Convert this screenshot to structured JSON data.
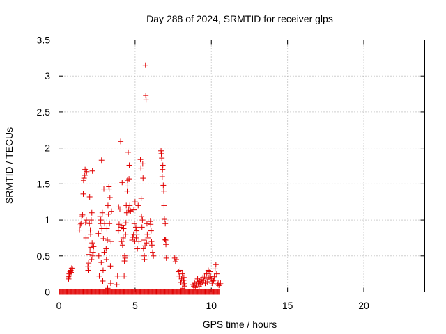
{
  "chart_data": {
    "type": "scatter",
    "title": "Day 288 of 2024, SRMTID for receiver glps",
    "xlabel": "GPS time / hours",
    "ylabel": "SRMTID / TECUs",
    "xlim": [
      0,
      24
    ],
    "ylim": [
      0,
      3.5
    ],
    "xticks": [
      0,
      5,
      10,
      15,
      20
    ],
    "yticks": [
      0,
      0.5,
      1,
      1.5,
      2,
      2.5,
      3,
      3.5
    ],
    "xtick_labels": [
      "0",
      "5",
      "10",
      "15",
      "20"
    ],
    "ytick_labels": [
      "0",
      "0.5",
      "1",
      "1.5",
      "2",
      "2.5",
      "3",
      "3.5"
    ],
    "grid": true,
    "marker": "+",
    "color": "#e00000",
    "series": [
      {
        "name": "glps",
        "points": [
          [
            0.0,
            0.29
          ],
          [
            0.62,
            0.21
          ],
          [
            0.64,
            0.18
          ],
          [
            0.68,
            0.25
          ],
          [
            0.7,
            0.22
          ],
          [
            0.74,
            0.28
          ],
          [
            0.78,
            0.3
          ],
          [
            0.8,
            0.27
          ],
          [
            0.84,
            0.33
          ],
          [
            0.9,
            0.32
          ],
          [
            1.35,
            0.86
          ],
          [
            1.4,
            0.93
          ],
          [
            1.45,
            0.95
          ],
          [
            1.5,
            1.05
          ],
          [
            1.55,
            1.07
          ],
          [
            1.6,
            1.36
          ],
          [
            1.62,
            1.55
          ],
          [
            1.65,
            1.58
          ],
          [
            1.7,
            1.62
          ],
          [
            1.72,
            1.7
          ],
          [
            1.75,
            0.96
          ],
          [
            1.78,
            0.75
          ],
          [
            1.8,
            1.0
          ],
          [
            1.82,
            1.67
          ],
          [
            1.9,
            0.35
          ],
          [
            1.92,
            0.3
          ],
          [
            1.95,
            0.4
          ],
          [
            1.97,
            0.52
          ],
          [
            2.0,
            0.95
          ],
          [
            2.02,
            1.32
          ],
          [
            2.04,
            0.58
          ],
          [
            2.06,
            0.86
          ],
          [
            2.08,
            0.8
          ],
          [
            2.1,
            0.62
          ],
          [
            2.12,
            1.0
          ],
          [
            2.14,
            0.45
          ],
          [
            2.16,
            1.1
          ],
          [
            2.18,
            0.68
          ],
          [
            2.2,
            1.68
          ],
          [
            2.22,
            0.5
          ],
          [
            2.25,
            0.55
          ],
          [
            2.28,
            0.63
          ],
          [
            2.6,
            0.81
          ],
          [
            2.62,
            0.5
          ],
          [
            2.65,
            0.22
          ],
          [
            2.7,
            1.05
          ],
          [
            2.72,
            0.95
          ],
          [
            2.75,
            1.0
          ],
          [
            2.78,
            0.41
          ],
          [
            2.8,
            1.83
          ],
          [
            2.82,
            0.88
          ],
          [
            2.85,
            1.1
          ],
          [
            2.88,
            0.15
          ],
          [
            2.9,
            0.3
          ],
          [
            2.92,
            0.74
          ],
          [
            2.95,
            1.43
          ],
          [
            2.97,
            0.55
          ],
          [
            3.0,
            0.95
          ],
          [
            3.05,
            0.0
          ],
          [
            3.1,
            0.6
          ],
          [
            3.12,
            0.45
          ],
          [
            3.15,
            0.88
          ],
          [
            3.18,
            0.72
          ],
          [
            3.2,
            0.05
          ],
          [
            3.22,
            1.2
          ],
          [
            3.25,
            1.08
          ],
          [
            3.28,
            1.46
          ],
          [
            3.3,
            1.43
          ],
          [
            3.32,
            0.95
          ],
          [
            3.35,
            1.31
          ],
          [
            3.38,
            0.36
          ],
          [
            3.4,
            0.12
          ],
          [
            3.42,
            0.7
          ],
          [
            3.45,
            1.12
          ],
          [
            3.8,
            0.1
          ],
          [
            3.85,
            0.22
          ],
          [
            3.9,
            0.85
          ],
          [
            3.92,
            1.18
          ],
          [
            3.95,
            0.94
          ],
          [
            4.0,
            1.15
          ],
          [
            4.05,
            2.09
          ],
          [
            4.08,
            0.9
          ],
          [
            4.12,
            0.7
          ],
          [
            4.15,
            1.52
          ],
          [
            4.18,
            0.65
          ],
          [
            4.2,
            0.92
          ],
          [
            4.22,
            0.75
          ],
          [
            4.25,
            0.88
          ],
          [
            4.28,
            0.22
          ],
          [
            4.3,
            0.43
          ],
          [
            4.32,
            0.5
          ],
          [
            4.35,
            0.47
          ],
          [
            4.38,
            0.8
          ],
          [
            4.4,
            0.96
          ],
          [
            4.42,
            1.2
          ],
          [
            4.45,
            1.1
          ],
          [
            4.48,
            1.4
          ],
          [
            4.5,
            1.55
          ],
          [
            4.52,
            1.47
          ],
          [
            4.55,
            1.94
          ],
          [
            4.58,
            1.15
          ],
          [
            4.6,
            1.57
          ],
          [
            4.62,
            1.76
          ],
          [
            4.65,
            1.2
          ],
          [
            4.68,
            1.13
          ],
          [
            4.7,
            1.12
          ],
          [
            4.8,
            0.72
          ],
          [
            4.85,
            0.76
          ],
          [
            4.9,
            0.8
          ],
          [
            4.92,
            1.14
          ],
          [
            4.95,
            0.95
          ],
          [
            4.98,
            0.7
          ],
          [
            5.0,
            1.25
          ],
          [
            5.05,
            0.9
          ],
          [
            5.08,
            0.75
          ],
          [
            5.1,
            0.85
          ],
          [
            5.12,
            0.8
          ],
          [
            5.15,
            0.6
          ],
          [
            5.2,
            1.2
          ],
          [
            5.25,
            0.7
          ],
          [
            5.35,
            1.84
          ],
          [
            5.38,
            1.72
          ],
          [
            5.4,
            1.3
          ],
          [
            5.42,
            1.05
          ],
          [
            5.45,
            0.9
          ],
          [
            5.48,
            1.0
          ],
          [
            5.5,
            1.78
          ],
          [
            5.52,
            1.58
          ],
          [
            5.55,
            0.6
          ],
          [
            5.58,
            0.72
          ],
          [
            5.6,
            0.5
          ],
          [
            5.62,
            0.45
          ],
          [
            5.65,
            0.64
          ],
          [
            5.68,
            3.15
          ],
          [
            5.7,
            2.73
          ],
          [
            5.72,
            2.67
          ],
          [
            5.75,
            0.68
          ],
          [
            5.78,
            0.95
          ],
          [
            5.8,
            0.8
          ],
          [
            5.85,
            0.75
          ],
          [
            6.0,
            0.98
          ],
          [
            6.02,
            0.94
          ],
          [
            6.05,
            0.85
          ],
          [
            6.08,
            0.7
          ],
          [
            6.1,
            0.65
          ],
          [
            6.15,
            0.55
          ],
          [
            6.2,
            0.5
          ],
          [
            6.7,
            1.96
          ],
          [
            6.72,
            1.92
          ],
          [
            6.75,
            1.86
          ],
          [
            6.78,
            1.6
          ],
          [
            6.8,
            1.7
          ],
          [
            6.82,
            1.76
          ],
          [
            6.85,
            1.48
          ],
          [
            6.88,
            1.4
          ],
          [
            6.9,
            1.2
          ],
          [
            6.92,
            1.01
          ],
          [
            6.95,
            0.73
          ],
          [
            6.98,
            0.95
          ],
          [
            7.0,
            0.72
          ],
          [
            7.02,
            0.66
          ],
          [
            7.05,
            0.47
          ],
          [
            7.6,
            0.47
          ],
          [
            7.65,
            0.42
          ],
          [
            7.7,
            0.45
          ],
          [
            7.85,
            0.28
          ],
          [
            7.9,
            0.22
          ],
          [
            7.95,
            0.3
          ],
          [
            8.0,
            0.13
          ],
          [
            8.05,
            0.18
          ],
          [
            8.1,
            0.25
          ],
          [
            8.12,
            0.05
          ],
          [
            8.15,
            0.1
          ],
          [
            8.18,
            0.16
          ],
          [
            8.2,
            0.2
          ],
          [
            8.22,
            0.12
          ],
          [
            8.25,
            0.08
          ],
          [
            8.8,
            0.1
          ],
          [
            8.85,
            0.08
          ],
          [
            8.9,
            0.12
          ],
          [
            8.95,
            0.06
          ],
          [
            9.0,
            0.1
          ],
          [
            9.05,
            0.14
          ],
          [
            9.1,
            0.18
          ],
          [
            9.15,
            0.12
          ],
          [
            9.2,
            0.08
          ],
          [
            9.25,
            0.15
          ],
          [
            9.3,
            0.11
          ],
          [
            9.35,
            0.17
          ],
          [
            9.4,
            0.13
          ],
          [
            9.45,
            0.2
          ],
          [
            9.5,
            0.16
          ],
          [
            9.55,
            0.22
          ],
          [
            9.6,
            0.12
          ],
          [
            9.65,
            0.18
          ],
          [
            9.7,
            0.25
          ],
          [
            9.75,
            0.14
          ],
          [
            9.8,
            0.3
          ],
          [
            9.85,
            0.2
          ],
          [
            9.9,
            0.28
          ],
          [
            9.95,
            0.22
          ],
          [
            10.0,
            0.18
          ],
          [
            10.05,
            0.12
          ],
          [
            10.1,
            0.15
          ],
          [
            10.15,
            0.16
          ],
          [
            10.2,
            0.21
          ],
          [
            10.25,
            0.32
          ],
          [
            10.3,
            0.38
          ],
          [
            10.35,
            0.25
          ],
          [
            10.4,
            0.1
          ],
          [
            10.45,
            0.12
          ],
          [
            10.5,
            0.09
          ],
          [
            10.55,
            0.1
          ],
          [
            10.6,
            0.12
          ]
        ],
        "zero_baseline_x_range": [
          0.0,
          10.6
        ]
      }
    ]
  }
}
